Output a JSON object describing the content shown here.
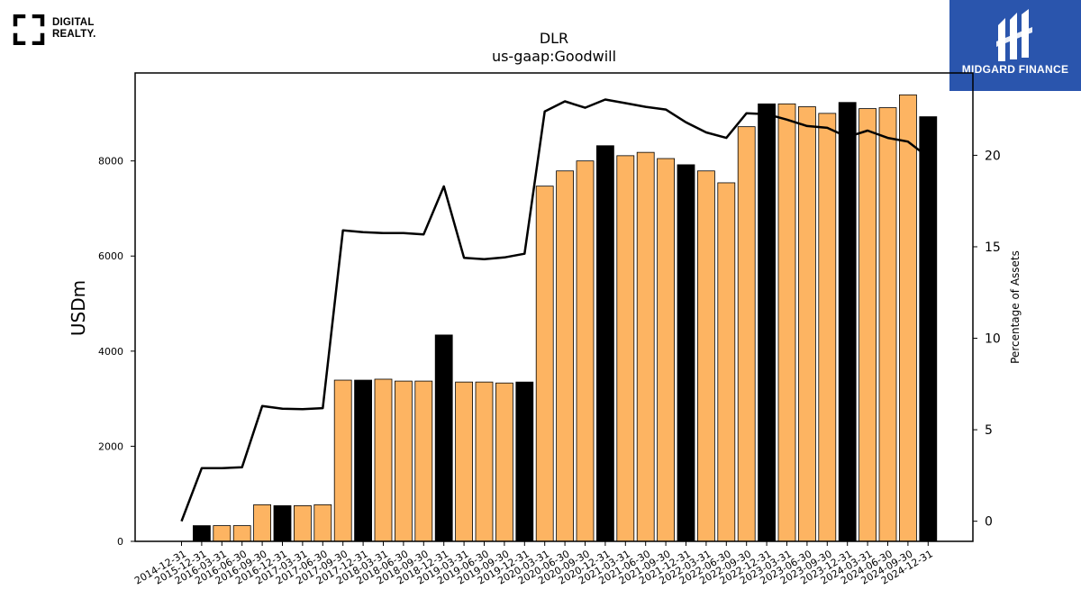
{
  "logos": {
    "left": {
      "line1": "DIGITAL",
      "line2": "REALTY."
    },
    "right": {
      "name": "MIDGARD FINANCE"
    }
  },
  "chart_data": {
    "type": "bar",
    "title": "DLR",
    "subtitle": "us-gaap:Goodwill",
    "ylabel": "USDm",
    "y2label": "Percentage of Assets",
    "ylim": [
      0,
      9850
    ],
    "y2lim": [
      -1.1,
      24.5
    ],
    "yticks": [
      0,
      2000,
      4000,
      6000,
      8000
    ],
    "y2ticks": [
      0,
      5,
      10,
      15,
      20
    ],
    "grid": false,
    "colors": {
      "annual": "#000000",
      "quarter": "#fdb462",
      "line": "#000000"
    },
    "categories": [
      "2014-12-31",
      "2015-12-31",
      "2016-03-31",
      "2016-06-30",
      "2016-09-30",
      "2016-12-31",
      "2017-03-31",
      "2017-06-30",
      "2017-09-30",
      "2017-12-31",
      "2018-03-31",
      "2018-06-30",
      "2018-09-30",
      "2018-12-31",
      "2019-03-31",
      "2019-06-30",
      "2019-09-30",
      "2019-12-31",
      "2020-03-31",
      "2020-06-30",
      "2020-09-30",
      "2020-12-31",
      "2021-03-31",
      "2021-06-30",
      "2021-09-30",
      "2021-12-31",
      "2022-03-31",
      "2022-06-30",
      "2022-09-30",
      "2022-12-31",
      "2023-03-31",
      "2023-06-30",
      "2023-09-30",
      "2023-12-31",
      "2024-03-31",
      "2024-06-30",
      "2024-09-30",
      "2024-12-31"
    ],
    "series": [
      {
        "kind": "bar",
        "values": [
          0,
          330,
          330,
          330,
          770,
          750,
          750,
          770,
          3390,
          3390,
          3410,
          3370,
          3370,
          4340,
          3350,
          3350,
          3330,
          3350,
          7470,
          7790,
          8000,
          8320,
          8110,
          8180,
          8050,
          7920,
          7790,
          7540,
          8720,
          9200,
          9200,
          9140,
          9000,
          9230,
          9100,
          9120,
          9390,
          8930
        ],
        "annual": [
          false,
          true,
          false,
          false,
          false,
          true,
          false,
          false,
          false,
          true,
          false,
          false,
          false,
          true,
          false,
          false,
          false,
          true,
          false,
          false,
          false,
          true,
          false,
          false,
          false,
          true,
          false,
          false,
          false,
          true,
          false,
          false,
          false,
          true,
          false,
          false,
          false,
          true
        ]
      },
      {
        "kind": "line",
        "axis": "right",
        "values": [
          0.0,
          2.9,
          2.9,
          2.95,
          6.3,
          6.15,
          6.12,
          6.18,
          15.9,
          15.8,
          15.75,
          15.75,
          15.68,
          18.3,
          14.4,
          14.32,
          14.42,
          14.62,
          22.4,
          22.95,
          22.6,
          23.05,
          22.85,
          22.65,
          22.5,
          21.8,
          21.25,
          20.95,
          22.3,
          22.25,
          21.95,
          21.6,
          21.5,
          21.0,
          21.35,
          20.95,
          20.75,
          19.9
        ]
      }
    ]
  }
}
